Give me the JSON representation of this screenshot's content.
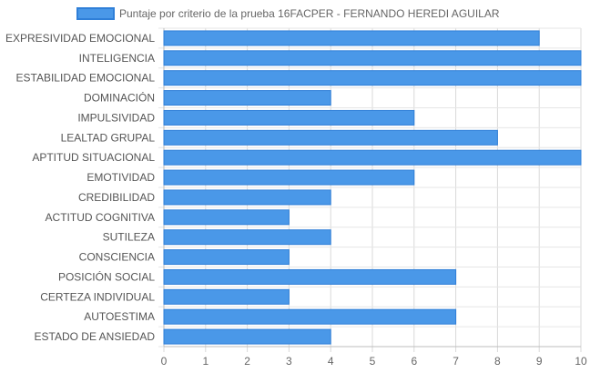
{
  "chart_data": {
    "type": "bar",
    "orientation": "horizontal",
    "title": "",
    "xlabel": "",
    "ylabel": "",
    "xlim": [
      0,
      10
    ],
    "x_ticks": [
      0,
      1,
      2,
      3,
      4,
      5,
      6,
      7,
      8,
      9,
      10
    ],
    "grid": true,
    "legend_position": "top",
    "series": [
      {
        "name": "Puntaje por criterio de la prueba 16FACPER - FERNANDO HEREDI AGUILAR",
        "color": "#4a98e8",
        "border_color": "#2f7fd8",
        "values": [
          9,
          10,
          10,
          4,
          6,
          8,
          10,
          6,
          4,
          3,
          4,
          3,
          7,
          3,
          7,
          4
        ]
      }
    ],
    "categories": [
      "EXPRESIVIDAD EMOCIONAL",
      "INTELIGENCIA",
      "ESTABILIDAD EMOCIONAL",
      "DOMINACIÓN",
      "IMPULSIVIDAD",
      "LEALTAD GRUPAL",
      "APTITUD SITUACIONAL",
      "EMOTIVIDAD",
      "CREDIBILIDAD",
      "ACTITUD COGNITIVA",
      "SUTILEZA",
      "CONSCIENCIA",
      "POSICIÓN SOCIAL",
      "CERTEZA INDIVIDUAL",
      "AUTOESTIMA",
      "ESTADO DE ANSIEDAD"
    ]
  }
}
